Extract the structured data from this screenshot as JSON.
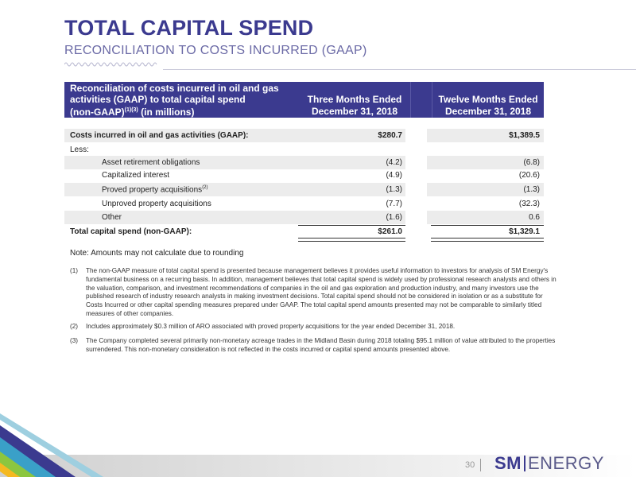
{
  "title": "TOTAL CAPITAL SPEND",
  "subtitle": "RECONCILIATION TO COSTS INCURRED (GAAP)",
  "table": {
    "header": {
      "col1_line1": "Reconciliation of costs incurred in oil and gas",
      "col1_line2": "activities (GAAP) to total capital spend",
      "col1_line3_pre": "(non-GAAP)",
      "col1_line3_sup": "(1)(3)",
      "col1_line3_post": " (in millions)",
      "col2_line1": "Three Months Ended",
      "col2_line2": "December 31, 2018",
      "col3_line1": "Twelve Months Ended",
      "col3_line2": "December 31, 2018"
    },
    "rows": [
      {
        "label": "Costs incurred in oil and gas activities (GAAP):",
        "v1": "$280.7",
        "v2": "$1,389.5"
      },
      {
        "label": "Less:",
        "v1": "",
        "v2": ""
      },
      {
        "label": "Asset retirement obligations",
        "v1": "(4.2)",
        "v2": "(6.8)"
      },
      {
        "label": "Capitalized interest",
        "v1": "(4.9)",
        "v2": "(20.6)"
      },
      {
        "label": "Proved property acquisitions",
        "sup": "(2)",
        "v1": "(1.3)",
        "v2": "(1.3)"
      },
      {
        "label": "Unproved property acquisitions",
        "v1": "(7.7)",
        "v2": "(32.3)"
      },
      {
        "label": "Other",
        "v1": "(1.6)",
        "v2": "0.6"
      },
      {
        "label": "Total capital spend (non-GAAP):",
        "v1": "$261.0",
        "v2": "$1,329.1"
      }
    ]
  },
  "note": "Note: Amounts may not calculate due to rounding",
  "footnotes": [
    {
      "num": "(1)",
      "text": "The non-GAAP measure of total capital spend is presented because management believes it provides useful information to investors for analysis of SM Energy's fundamental business on a recurring basis. In addition, management believes that total capital spend is widely used by professional research analysts and others in the valuation, comparison, and investment recommendations of companies in the oil and gas exploration and production industry, and many investors use the published research of industry research analysts in making investment decisions. Total capital spend should not be considered in isolation or as a substitute for Costs Incurred or other capital spending measures prepared under GAAP. The total capital spend amounts presented may not be comparable to similarly titled measures of other companies."
    },
    {
      "num": "(2)",
      "text": "Includes approximately $0.3 million of ARO associated with proved property acquisitions for the year ended December 31, 2018."
    },
    {
      "num": "(3)",
      "text": "The Company completed several primarily non-monetary acreage trades in the Midland Basin during 2018 totaling $95.1 million of value attributed to the properties surrendered.  This non-monetary consideration is not reflected in the costs incurred or capital spend amounts presented above."
    }
  ],
  "footer": {
    "page_number": "30",
    "logo_sm": "SM",
    "logo_energy": "ENERGY"
  },
  "colors": {
    "brand_purple": "#3b3a8f",
    "row_shade": "#ececec"
  }
}
